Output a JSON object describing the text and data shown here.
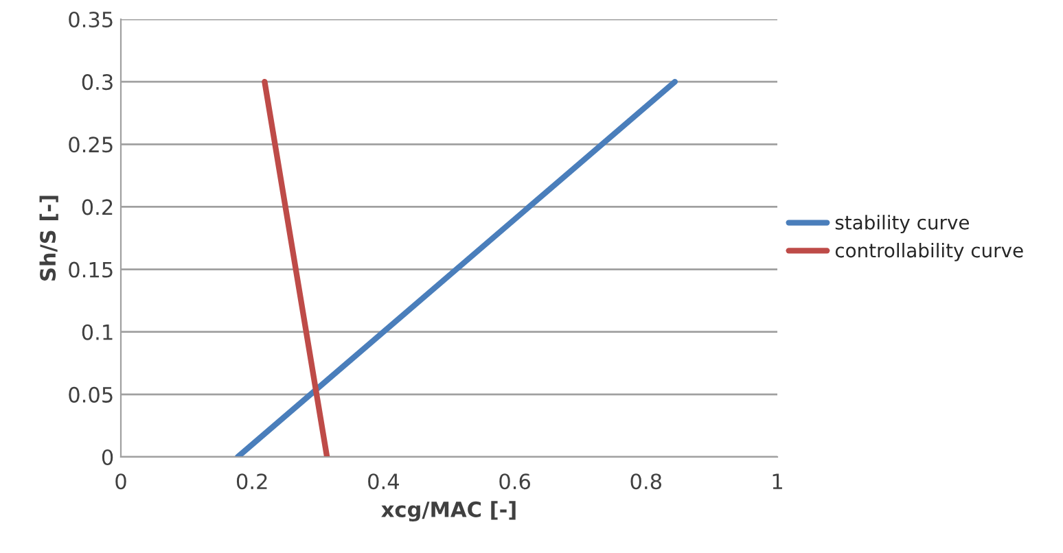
{
  "chart_data": {
    "type": "line",
    "xlabel": "xcg/MAC [-]",
    "ylabel": "Sh/S [-]",
    "series": [
      {
        "name": "stability curve",
        "color": "#4a7ebb",
        "x": [
          0.178,
          0.844
        ],
        "values": [
          0,
          0.3
        ]
      },
      {
        "name": "controllability curve",
        "color": "#be4b48",
        "x": [
          0.219,
          0.314
        ],
        "values": [
          0.3,
          0
        ]
      }
    ],
    "xlim": [
      0,
      1
    ],
    "xticks": [
      0,
      0.2,
      0.4,
      0.6,
      0.8,
      1
    ],
    "ylim": [
      0,
      0.35
    ],
    "yticks": [
      0,
      0.05,
      0.1,
      0.15,
      0.2,
      0.25,
      0.3,
      0.35
    ],
    "grid": "y",
    "legend": "right",
    "marker": "none",
    "line_style": "solid"
  }
}
